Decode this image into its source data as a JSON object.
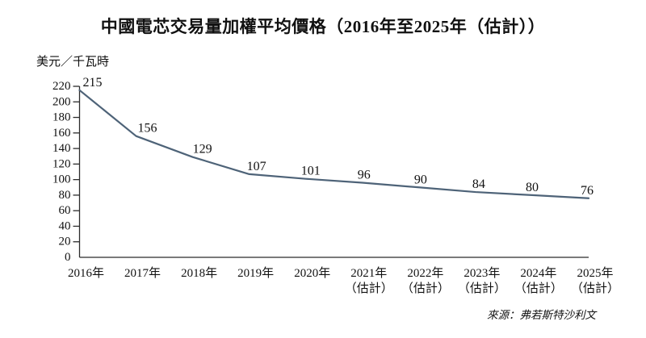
{
  "chart_data": {
    "type": "line",
    "title": "中國電芯交易量加權平均價格（2016年至2025年（估計））",
    "ylabel": "美元／千瓦時",
    "categories": [
      {
        "label": "2016年",
        "note": ""
      },
      {
        "label": "2017年",
        "note": ""
      },
      {
        "label": "2018年",
        "note": ""
      },
      {
        "label": "2019年",
        "note": ""
      },
      {
        "label": "2020年",
        "note": ""
      },
      {
        "label": "2021年",
        "note": "（估計）"
      },
      {
        "label": "2022年",
        "note": "（估計）"
      },
      {
        "label": "2023年",
        "note": "（估計）"
      },
      {
        "label": "2024年",
        "note": "（估計）"
      },
      {
        "label": "2025年",
        "note": "（估計）"
      }
    ],
    "values": [
      215,
      156,
      129,
      107,
      101,
      96,
      90,
      84,
      80,
      76
    ],
    "ylim": [
      0,
      220
    ],
    "ytick_step": 20,
    "grid": "off",
    "legend": "none",
    "line_color": "#4e6378",
    "axis_color": "#2b2b2b",
    "source": "來源：弗若斯特沙利文"
  }
}
